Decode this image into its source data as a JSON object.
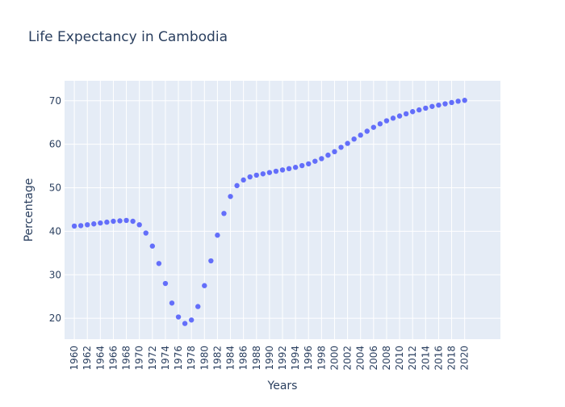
{
  "chart_data": {
    "type": "scatter",
    "title": "Life Expectancy in Cambodia",
    "xlabel": "Years",
    "ylabel": "Percentage",
    "xlim": [
      1958.5,
      2025.5
    ],
    "ylim": [
      15.2,
      74.6
    ],
    "x_ticks": [
      1960,
      1962,
      1964,
      1966,
      1968,
      1970,
      1972,
      1974,
      1976,
      1978,
      1980,
      1982,
      1984,
      1986,
      1988,
      1990,
      1992,
      1994,
      1996,
      1998,
      2000,
      2002,
      2004,
      2006,
      2008,
      2010,
      2012,
      2014,
      2016,
      2018,
      2020
    ],
    "y_ticks": [
      20,
      30,
      40,
      50,
      60,
      70
    ],
    "grid": true,
    "marker_color": "#636efa",
    "plot_bg": "#e5ecf6",
    "x": [
      1960,
      1961,
      1962,
      1963,
      1964,
      1965,
      1966,
      1967,
      1968,
      1969,
      1970,
      1971,
      1972,
      1973,
      1974,
      1975,
      1976,
      1977,
      1978,
      1979,
      1980,
      1981,
      1982,
      1983,
      1984,
      1985,
      1986,
      1987,
      1988,
      1989,
      1990,
      1991,
      1992,
      1993,
      1994,
      1995,
      1996,
      1997,
      1998,
      1999,
      2000,
      2001,
      2002,
      2003,
      2004,
      2005,
      2006,
      2007,
      2008,
      2009,
      2010,
      2011,
      2012,
      2013,
      2014,
      2015,
      2016,
      2017,
      2018,
      2019,
      2020
    ],
    "y": [
      41.2,
      41.3,
      41.5,
      41.7,
      41.9,
      42.1,
      42.3,
      42.4,
      42.5,
      42.3,
      41.5,
      39.6,
      36.6,
      32.6,
      28.0,
      23.5,
      20.3,
      18.8,
      19.6,
      22.7,
      27.5,
      33.2,
      39.1,
      44.1,
      48.0,
      50.5,
      51.8,
      52.5,
      52.9,
      53.2,
      53.5,
      53.8,
      54.1,
      54.4,
      54.7,
      55.1,
      55.5,
      56.1,
      56.7,
      57.5,
      58.3,
      59.3,
      60.2,
      61.2,
      62.1,
      63.0,
      63.9,
      64.7,
      65.4,
      66.0,
      66.5,
      67.0,
      67.5,
      67.9,
      68.3,
      68.7,
      69.0,
      69.3,
      69.6,
      69.9,
      70.1
    ]
  }
}
